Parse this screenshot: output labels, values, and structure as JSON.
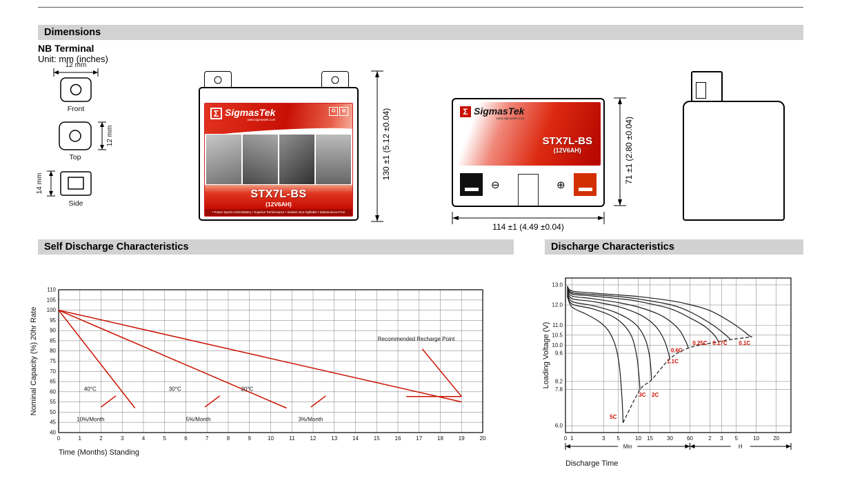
{
  "sections": {
    "dimensions_title": "Dimensions",
    "self_discharge_title": "Self Discharge Characteristics",
    "discharge_title": "Discharge Characteristics"
  },
  "dimensions": {
    "terminal_heading": "NB Terminal",
    "unit_note": "Unit: mm (inches)",
    "terminal_views": {
      "front": {
        "label": "Front",
        "width": "12 mm"
      },
      "top": {
        "label": "Top",
        "height": "12 mm"
      },
      "side": {
        "label": "Side",
        "height": "14 mm"
      }
    },
    "battery_label": {
      "brand_sigma": "Σ",
      "brand": "SigmasTek",
      "brand_url": "www.sigmastek.com",
      "model": "STX7L-BS",
      "capacity": "(12V6AH)",
      "tagline": "• Power Sports AGM Battery • Superior Performance • Sealed, Non-Spillable • Maintenance-Free",
      "icon_recycle": "♻",
      "icon_no_disposal": "⊗"
    },
    "front_view": {
      "height_dim": "130 ±1 (5.12 ±0.04)"
    },
    "top_view": {
      "width_dim": "114 ±1 (4.49 ±0.04)",
      "depth_dim": "71 ±1 (2.80 ±0.04)",
      "minus_symbol": "⊖",
      "plus_symbol": "⊕"
    }
  },
  "chart_data": [
    {
      "type": "line",
      "title": "Self Discharge Characteristics",
      "xlabel": "Time (Months) Standing",
      "ylabel": "Nominal Capacity (%) 20hr Rate",
      "xlim": [
        0,
        20
      ],
      "ylim": [
        40,
        110
      ],
      "grid": true,
      "legend_position": "none",
      "line_color": "#cc1100",
      "x_ticks": [
        0,
        1,
        2,
        3,
        4,
        5,
        6,
        7,
        8,
        9,
        10,
        11,
        12,
        13,
        14,
        15,
        16,
        17,
        18,
        19,
        20
      ],
      "y_ticks": [
        40,
        45,
        50,
        55,
        60,
        65,
        70,
        75,
        80,
        85,
        90,
        95,
        100,
        105,
        110
      ],
      "series": [
        {
          "name": "40°C (10%/Month)",
          "points": [
            [
              0,
              100
            ],
            [
              3.6,
              52
            ]
          ]
        },
        {
          "name": "30°C (5%/Month)",
          "points": [
            [
              0,
              100
            ],
            [
              10.75,
              52
            ]
          ]
        },
        {
          "name": "20°C (3%/Month)",
          "points": [
            [
              0,
              100
            ],
            [
              19,
              55
            ]
          ]
        }
      ],
      "extra_lines": [
        {
          "name": "10%-leader",
          "points": [
            [
              2.0,
              52.5
            ],
            [
              2.7,
              58
            ]
          ]
        },
        {
          "name": "5%-leader",
          "points": [
            [
              6.9,
              52.5
            ],
            [
              7.6,
              58
            ]
          ]
        },
        {
          "name": "3%-leader",
          "points": [
            [
              11.9,
              52.5
            ],
            [
              12.6,
              58
            ]
          ]
        },
        {
          "name": "recharge-level",
          "points": [
            [
              16.4,
              57.7
            ],
            [
              19,
              57.7
            ]
          ]
        },
        {
          "name": "recharge-leader",
          "points": [
            [
              17.15,
              81
            ],
            [
              19,
              57.7
            ]
          ]
        }
      ],
      "annotations": [
        {
          "text": "40°C",
          "x": 1.2,
          "y": 60.5
        },
        {
          "text": "30°C",
          "x": 5.2,
          "y": 60.5
        },
        {
          "text": "20°C",
          "x": 8.6,
          "y": 60.5
        },
        {
          "text": "10%/Month",
          "x": 0.85,
          "y": 45.5
        },
        {
          "text": "5%/Month",
          "x": 6.0,
          "y": 45.5
        },
        {
          "text": "3%/Month",
          "x": 11.3,
          "y": 45.5
        },
        {
          "text": "Recommended Recharge Point",
          "x": 15.05,
          "y": 85
        }
      ]
    },
    {
      "type": "line",
      "title": "Discharge Characteristics",
      "xlabel": "Discharge Time",
      "ylabel": "Loading Voltage (V)",
      "x_scale": "log",
      "xlim": [
        0.8,
        2000
      ],
      "ylim_draw": [
        5.66,
        13.34
      ],
      "x_origin_label": "0",
      "x_units": [
        {
          "label": "Min",
          "from": 0.8,
          "to": 60
        },
        {
          "label": "H",
          "from": 60,
          "to": 2000
        }
      ],
      "x_ticks": [
        {
          "label": "1",
          "t": 1
        },
        {
          "label": "3",
          "t": 3
        },
        {
          "label": "5",
          "t": 5
        },
        {
          "label": "10",
          "t": 10
        },
        {
          "label": "15",
          "t": 15
        },
        {
          "label": "30",
          "t": 30
        },
        {
          "label": "60",
          "t": 60
        },
        {
          "label": "2",
          "t": 120
        },
        {
          "label": "3",
          "t": 180
        },
        {
          "label": "5",
          "t": 300
        },
        {
          "label": "10",
          "t": 600
        },
        {
          "label": "20",
          "t": 1200
        }
      ],
      "y_ticks": [
        {
          "label": "6.0",
          "v": 6.0
        },
        {
          "label": "7.8",
          "v": 7.8
        },
        {
          "label": "8.2",
          "v": 8.2
        },
        {
          "label": "9.6",
          "v": 9.6
        },
        {
          "label": "10.0",
          "v": 10.0
        },
        {
          "label": "10.5",
          "v": 10.5
        },
        {
          "label": "11.0",
          "v": 11.0
        },
        {
          "label": "12.0",
          "v": 12.0
        },
        {
          "label": "13.0",
          "v": 13.0
        }
      ],
      "series": [
        {
          "name": "0.1C",
          "points": [
            [
              0.85,
              12.95
            ],
            [
              1,
              12.7
            ],
            [
              2,
              12.6
            ],
            [
              5,
              12.5
            ],
            [
              10,
              12.42
            ],
            [
              30,
              12.22
            ],
            [
              60,
              12.02
            ],
            [
              120,
              11.72
            ],
            [
              240,
              11.18
            ],
            [
              380,
              10.72
            ],
            [
              480,
              10.45
            ],
            [
              520,
              10.42
            ]
          ]
        },
        {
          "name": "0.17C",
          "points": [
            [
              0.85,
              12.9
            ],
            [
              1,
              12.62
            ],
            [
              2,
              12.52
            ],
            [
              5,
              12.42
            ],
            [
              10,
              12.3
            ],
            [
              30,
              12.02
            ],
            [
              60,
              11.66
            ],
            [
              120,
              11.1
            ],
            [
              200,
              10.56
            ],
            [
              245,
              10.28
            ]
          ]
        },
        {
          "name": "0.25C",
          "points": [
            [
              0.85,
              12.85
            ],
            [
              1,
              12.55
            ],
            [
              2,
              12.45
            ],
            [
              5,
              12.32
            ],
            [
              10,
              12.18
            ],
            [
              30,
              11.82
            ],
            [
              60,
              11.36
            ],
            [
              100,
              10.94
            ],
            [
              140,
              10.5
            ],
            [
              162,
              10.18
            ]
          ]
        },
        {
          "name": "0.6C",
          "points": [
            [
              0.85,
              12.8
            ],
            [
              1,
              12.45
            ],
            [
              2,
              12.32
            ],
            [
              5,
              12.12
            ],
            [
              10,
              11.9
            ],
            [
              20,
              11.55
            ],
            [
              30,
              11.2
            ],
            [
              42,
              10.74
            ],
            [
              52,
              10.18
            ],
            [
              57,
              9.86
            ]
          ]
        },
        {
          "name": "1.1C",
          "points": [
            [
              0.85,
              12.72
            ],
            [
              1,
              12.32
            ],
            [
              2,
              12.18
            ],
            [
              5,
              11.92
            ],
            [
              10,
              11.56
            ],
            [
              15,
              11.2
            ],
            [
              20,
              10.78
            ],
            [
              25,
              10.2
            ],
            [
              28.5,
              9.62
            ],
            [
              29.8,
              9.32
            ]
          ]
        },
        {
          "name": "2C",
          "points": [
            [
              0.85,
              12.65
            ],
            [
              1,
              12.18
            ],
            [
              2,
              11.98
            ],
            [
              4,
              11.7
            ],
            [
              7,
              11.32
            ],
            [
              10,
              10.9
            ],
            [
              13,
              10.22
            ],
            [
              15,
              9.32
            ],
            [
              15.9,
              8.28
            ]
          ]
        },
        {
          "name": "3C",
          "points": [
            [
              0.85,
              12.55
            ],
            [
              1,
              12.05
            ],
            [
              2,
              11.82
            ],
            [
              4,
              11.45
            ],
            [
              6,
              11.02
            ],
            [
              8,
              10.42
            ],
            [
              9.5,
              9.45
            ],
            [
              10.3,
              8.4
            ],
            [
              10.6,
              7.78
            ]
          ]
        },
        {
          "name": "5C",
          "points": [
            [
              0.85,
              12.45
            ],
            [
              1,
              11.9
            ],
            [
              1.6,
              11.56
            ],
            [
              2.5,
              11.2
            ],
            [
              3.5,
              10.75
            ],
            [
              4.5,
              10.0
            ],
            [
              5.2,
              8.95
            ],
            [
              5.7,
              7.3
            ],
            [
              5.9,
              6.15
            ]
          ]
        }
      ],
      "cutoff_line": {
        "style": "dashed",
        "points": [
          [
            5.9,
            6.15
          ],
          [
            10.6,
            7.78
          ],
          [
            15.9,
            8.28
          ],
          [
            29.8,
            9.32
          ],
          [
            57,
            9.86
          ],
          [
            162,
            10.18
          ],
          [
            245,
            10.28
          ],
          [
            520,
            10.42
          ]
        ]
      },
      "labels": [
        {
          "text": "5C",
          "x": 4.2,
          "y": 6.35
        },
        {
          "text": "3C",
          "x": 11.5,
          "y": 7.45
        },
        {
          "text": "2C",
          "x": 18,
          "y": 7.45
        },
        {
          "text": "1.1C",
          "x": 33,
          "y": 9.1
        },
        {
          "text": "0.6C",
          "x": 38,
          "y": 9.65
        },
        {
          "text": "0.25C",
          "x": 85,
          "y": 10.02
        },
        {
          "text": "0.17C",
          "x": 170,
          "y": 10.02
        },
        {
          "text": "0.1C",
          "x": 400,
          "y": 10.02
        }
      ],
      "label_color": "#cc1100"
    }
  ]
}
